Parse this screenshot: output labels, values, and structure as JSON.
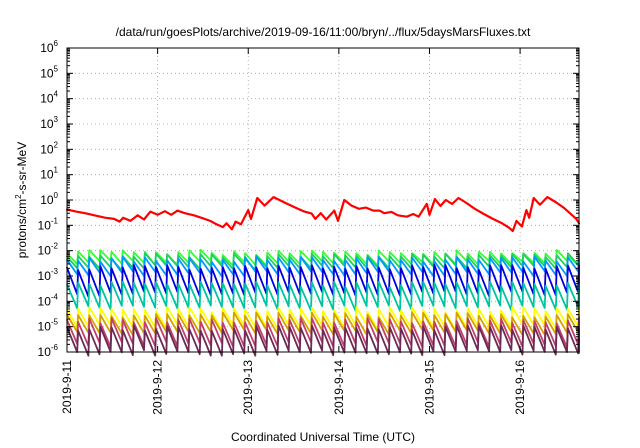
{
  "chart_data": {
    "type": "line",
    "title": "/data/run/goesPlots/archive/2019-09-16/11:00/bryn/../flux/5daysMarsFluxes.txt",
    "xlabel": "Coordinated Universal Time (UTC)",
    "ylabel": {
      "prefix": "protons/cm",
      "sup": "2",
      "suffix": "-s-sr-MeV"
    },
    "yscale": "log",
    "ylim": [
      1e-06,
      1000000.0
    ],
    "y_ticks": [
      {
        "base": "10",
        "exp": "-6",
        "value": 1e-06
      },
      {
        "base": "10",
        "exp": "-5",
        "value": 1e-05
      },
      {
        "base": "10",
        "exp": "-4",
        "value": 0.0001
      },
      {
        "base": "10",
        "exp": "-3",
        "value": 0.001
      },
      {
        "base": "10",
        "exp": "-2",
        "value": 0.01
      },
      {
        "base": "10",
        "exp": "-1",
        "value": 0.1
      },
      {
        "base": "10",
        "exp": "0",
        "value": 1
      },
      {
        "base": "10",
        "exp": "1",
        "value": 10
      },
      {
        "base": "10",
        "exp": "2",
        "value": 100
      },
      {
        "base": "10",
        "exp": "3",
        "value": 1000
      },
      {
        "base": "10",
        "exp": "4",
        "value": 10000
      },
      {
        "base": "10",
        "exp": "5",
        "value": 100000
      },
      {
        "base": "10",
        "exp": "6",
        "value": 1000000
      }
    ],
    "x_ticks": [
      "2019-9-11",
      "2019-9-12",
      "2019-9-13",
      "2019-9-14",
      "2019-9-15",
      "2019-9-16"
    ],
    "x_tick_values": [
      0,
      1,
      2,
      3,
      4,
      5
    ],
    "xlim": [
      0,
      5.65
    ],
    "grid": true,
    "legend": "none",
    "series": [
      {
        "color": "#ff0000",
        "values": [
          [
            0.0,
            0.42
          ],
          [
            0.1,
            0.35
          ],
          [
            0.2,
            0.3
          ],
          [
            0.32,
            0.24
          ],
          [
            0.42,
            0.2
          ],
          [
            0.52,
            0.18
          ],
          [
            0.58,
            0.14
          ],
          [
            0.62,
            0.2
          ],
          [
            0.7,
            0.15
          ],
          [
            0.78,
            0.25
          ],
          [
            0.85,
            0.17
          ],
          [
            0.92,
            0.35
          ],
          [
            1.0,
            0.26
          ],
          [
            1.08,
            0.36
          ],
          [
            1.15,
            0.26
          ],
          [
            1.22,
            0.38
          ],
          [
            1.3,
            0.3
          ],
          [
            1.4,
            0.25
          ],
          [
            1.5,
            0.19
          ],
          [
            1.58,
            0.15
          ],
          [
            1.65,
            0.11
          ],
          [
            1.72,
            0.085
          ],
          [
            1.76,
            0.12
          ],
          [
            1.82,
            0.07
          ],
          [
            1.86,
            0.14
          ],
          [
            1.92,
            0.11
          ],
          [
            2.0,
            0.4
          ],
          [
            2.03,
            0.18
          ],
          [
            2.1,
            1.2
          ],
          [
            2.18,
            0.6
          ],
          [
            2.28,
            1.3
          ],
          [
            2.4,
            0.8
          ],
          [
            2.52,
            0.5
          ],
          [
            2.62,
            0.35
          ],
          [
            2.7,
            0.29
          ],
          [
            2.74,
            0.18
          ],
          [
            2.8,
            0.3
          ],
          [
            2.86,
            0.17
          ],
          [
            2.95,
            0.38
          ],
          [
            2.99,
            0.15
          ],
          [
            3.06,
            1.0
          ],
          [
            3.14,
            0.6
          ],
          [
            3.22,
            0.45
          ],
          [
            3.3,
            0.5
          ],
          [
            3.38,
            0.38
          ],
          [
            3.45,
            0.38
          ],
          [
            3.5,
            0.3
          ],
          [
            3.58,
            0.34
          ],
          [
            3.65,
            0.25
          ],
          [
            3.75,
            0.22
          ],
          [
            3.82,
            0.28
          ],
          [
            3.88,
            0.22
          ],
          [
            3.97,
            0.7
          ],
          [
            4.0,
            0.26
          ],
          [
            4.06,
            1.1
          ],
          [
            4.12,
            0.58
          ],
          [
            4.18,
            1.0
          ],
          [
            4.25,
            0.7
          ],
          [
            4.32,
            1.2
          ],
          [
            4.4,
            0.8
          ],
          [
            4.5,
            0.45
          ],
          [
            4.6,
            0.28
          ],
          [
            4.7,
            0.18
          ],
          [
            4.8,
            0.12
          ],
          [
            4.88,
            0.08
          ],
          [
            4.92,
            0.06
          ],
          [
            4.96,
            0.15
          ],
          [
            5.02,
            0.09
          ],
          [
            5.07,
            0.4
          ],
          [
            5.1,
            0.2
          ],
          [
            5.15,
            1.2
          ],
          [
            5.22,
            0.65
          ],
          [
            5.3,
            1.3
          ],
          [
            5.4,
            0.8
          ],
          [
            5.48,
            0.5
          ],
          [
            5.55,
            0.3
          ],
          [
            5.62,
            0.18
          ],
          [
            5.65,
            0.12
          ]
        ]
      },
      {
        "color": "#33ff33",
        "pattern": {
          "base": 0.004,
          "jumps": [
            [
              0.45,
              0.009
            ],
            [
              0.88,
              0.009
            ],
            [
              1.98,
              0.008
            ],
            [
              2.85,
              0.009
            ],
            [
              3.85,
              0.008
            ],
            [
              4.6,
              0.009
            ],
            [
              4.98,
              0.008
            ]
          ],
          "amp": 2.2
        }
      },
      {
        "color": "#22cc66",
        "pattern": {
          "base": 0.0028,
          "amp": 2.3
        }
      },
      {
        "color": "#0099ff",
        "pattern": {
          "base": 0.0018,
          "amp": 2.6
        }
      },
      {
        "color": "#0000dd",
        "pattern": {
          "base": 0.0005,
          "amp": 4.5
        }
      },
      {
        "color": "#00c4a0",
        "pattern": {
          "base": 0.00012,
          "amp": 4.0
        }
      },
      {
        "color": "#ffff00",
        "pattern": {
          "base": 1.6e-05,
          "amp": 3.0
        }
      },
      {
        "color": "#d6a000",
        "pattern": {
          "base": 1e-05,
          "amp": 3.0
        }
      },
      {
        "color": "#c0406a",
        "pattern": {
          "base": 4.5e-06,
          "amp": 4.0
        }
      },
      {
        "color": "#6b2a55",
        "pattern": {
          "base": 2.2e-06,
          "amp": 4.2
        }
      }
    ]
  }
}
